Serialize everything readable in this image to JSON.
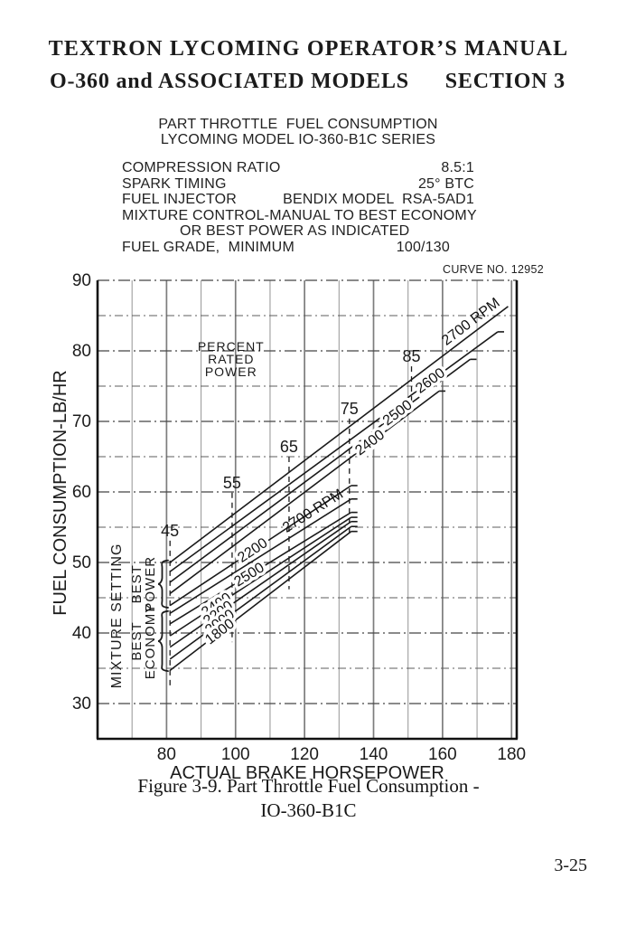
{
  "page": {
    "header_line1": "TEXTRON LYCOMING OPERATOR’S MANUAL",
    "header_line2_left": "O-360 and ASSOCIATED MODELS",
    "header_line2_right": "SECTION 3",
    "caption_line1": "Figure 3-9. Part Throttle Fuel Consumption -",
    "caption_line2": "IO-360-B1C",
    "page_number": "3-25"
  },
  "spec_block": {
    "title_line1": "PART THROTTLE  FUEL CONSUMPTION",
    "title_line2": "LYCOMING MODEL IO-360-B1C SERIES",
    "rows": [
      {
        "label": "COMPRESSION RATIO",
        "value": "8.5:1"
      },
      {
        "label": "SPARK TIMING",
        "value": "25° BTC"
      },
      {
        "label": "FUEL INJECTOR",
        "value": "BENDIX MODEL  RSA-5AD1"
      },
      {
        "label": "MIXTURE CONTROL-MANUAL TO BEST ECONOMY",
        "value": ""
      },
      {
        "label": "OR BEST POWER AS INDICATED",
        "value": ""
      },
      {
        "label": "FUEL GRADE,  MINIMUM",
        "value": "100/130"
      }
    ],
    "curve_no": "CURVE NO. 12952"
  },
  "chart_data": {
    "type": "line",
    "title": "Part Throttle Fuel Consumption - Lycoming Model IO-360-B1C Series",
    "xlabel": "ACTUAL BRAKE HORSEPOWER",
    "ylabel": "FUEL CONSUMPTION-LB/HR",
    "xlim": [
      60,
      181.5
    ],
    "ylim": [
      25,
      90
    ],
    "x_ticks": [
      80,
      100,
      120,
      140,
      160,
      180
    ],
    "y_ticks": [
      30,
      40,
      50,
      60,
      70,
      80,
      90
    ],
    "x_grid_step": 10,
    "y_grid_step": 5,
    "grid": true,
    "legend_position": "none",
    "percent_note": {
      "lines": [
        "PERCENT",
        "RATED",
        "POWER"
      ],
      "hp": 98.7,
      "fuel": 78.6
    },
    "percent_marks": [
      {
        "label": "45",
        "hp": 81,
        "fuel_top": 53.1,
        "fuel_bottom": 32.3
      },
      {
        "label": "55",
        "hp": 99,
        "fuel_top": 59.9,
        "fuel_bottom": 38.7
      },
      {
        "label": "65",
        "hp": 115.5,
        "fuel_top": 65.0,
        "fuel_bottom": 46.2
      },
      {
        "label": "75",
        "hp": 133,
        "fuel_top": 70.4,
        "fuel_bottom": 54.1
      },
      {
        "label": "85",
        "hp": 151,
        "fuel_top": 77.8,
        "fuel_bottom": 72.1
      }
    ],
    "series": [
      {
        "group": "best power",
        "name": "2700 RPM",
        "points": [
          [
            81,
            50.0
          ],
          [
            179,
            86.3
          ]
        ],
        "label": "2700 RPM",
        "label_hp": 170,
        "label_pos": "above",
        "end_hook": false
      },
      {
        "group": "best power",
        "name": "2600",
        "points": [
          [
            81,
            48.7
          ],
          [
            176,
            82.7
          ]
        ],
        "label": "2600",
        "label_hp": 156.5,
        "label_pos": "on",
        "end_hook": true
      },
      {
        "group": "best power",
        "name": "2500",
        "points": [
          [
            81,
            47.2
          ],
          [
            168,
            78.8
          ]
        ],
        "label": "2500",
        "label_hp": 147,
        "label_pos": "on",
        "end_hook": true
      },
      {
        "group": "best power",
        "name": "2400",
        "points": [
          [
            81,
            45.6
          ],
          [
            159,
            74.3
          ]
        ],
        "label": "2400",
        "label_hp": 139,
        "label_pos": "on",
        "end_hook": true
      },
      {
        "group": "best power",
        "name": "2200",
        "points": [
          [
            81,
            43.9
          ],
          [
            133.5,
            60.9
          ]
        ],
        "label": "2200",
        "label_hp": 105,
        "label_pos": "on",
        "end_hook": true
      },
      {
        "group": "best economy",
        "name": "2700 RPM",
        "points": [
          [
            81,
            42.8
          ],
          [
            133.5,
            59.0
          ]
        ],
        "label": "2700 RPM",
        "label_hp": 124,
        "label_pos": "above",
        "end_hook": true
      },
      {
        "group": "best economy",
        "name": "2500",
        "points": [
          [
            81,
            41.3
          ],
          [
            133.5,
            57.1
          ]
        ],
        "label": "2500",
        "label_hp": 104,
        "label_pos": "on",
        "end_hook": true
      },
      {
        "group": "best economy",
        "name": "2400",
        "points": [
          [
            81,
            39.6
          ],
          [
            133.5,
            56.4
          ]
        ],
        "label": "2400",
        "label_hp": 94.5,
        "label_pos": "on",
        "end_hook": true
      },
      {
        "group": "best economy",
        "name": "2200",
        "points": [
          [
            81,
            38.0
          ],
          [
            133.5,
            55.8
          ]
        ],
        "label": "2200",
        "label_hp": 95,
        "label_pos": "on",
        "end_hook": true
      },
      {
        "group": "best economy",
        "name": "2000",
        "points": [
          [
            81,
            36.3
          ],
          [
            133.5,
            55.1
          ]
        ],
        "label": "2000",
        "label_hp": 95.5,
        "label_pos": "on",
        "end_hook": true
      },
      {
        "group": "best economy",
        "name": "1800",
        "points": [
          [
            81,
            34.7
          ],
          [
            133.5,
            54.4
          ]
        ],
        "label": "1800",
        "label_hp": 95.5,
        "label_pos": "on",
        "end_hook": true
      }
    ],
    "mixture": {
      "title": "MIXTURE SETTING",
      "groups": [
        {
          "lines": [
            "BEST",
            "POWER"
          ],
          "fuel_top": 50.3,
          "fuel_bottom": 43.6
        },
        {
          "lines": [
            "BEST",
            "ECONOMY"
          ],
          "fuel_top": 43.1,
          "fuel_bottom": 34.6
        }
      ]
    }
  }
}
